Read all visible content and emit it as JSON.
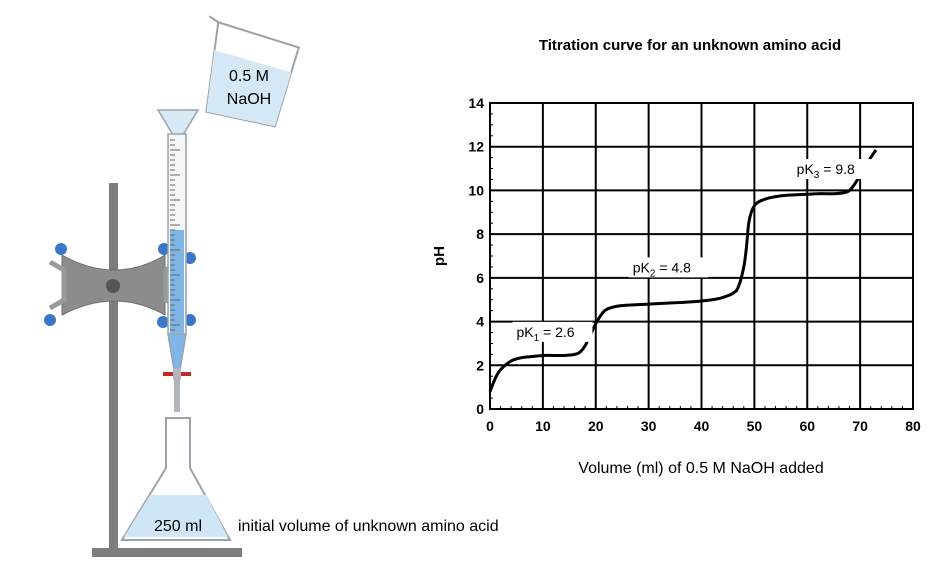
{
  "apparatus": {
    "beaker_label_line1": "0.5 M",
    "beaker_label_line2": "NaOH",
    "flask_label": "250 ml",
    "flask_caption": "initial volume of unknown amino acid"
  },
  "colors": {
    "liquid": "#cfe6f7",
    "burette_liquid": "#7fb6e6",
    "clamp": "#8c8c8c",
    "clamp_knobs": "#3b77c9",
    "stopcock": "#c62828",
    "stand": "#7d7d7d",
    "curve": "#000000",
    "grid": "#000000"
  },
  "chart_data": {
    "type": "line",
    "title": "Titration curve for an unknown amino acid",
    "xlabel": "Volume (ml) of 0.5 M NaOH added",
    "ylabel": "pH",
    "xlim": [
      0,
      80
    ],
    "ylim": [
      0,
      14
    ],
    "xticks": [
      "0",
      "10",
      "20",
      "30",
      "40",
      "50",
      "60",
      "70",
      "80"
    ],
    "yticks": [
      "0",
      "2",
      "4",
      "6",
      "8",
      "10",
      "12",
      "14"
    ],
    "grid": true,
    "series": [
      {
        "x": [
          0,
          1,
          2,
          4,
          6,
          8,
          10,
          12,
          14,
          16,
          17,
          18,
          19,
          20,
          21,
          22,
          24,
          26,
          30,
          34,
          38,
          42,
          44,
          46,
          47,
          48,
          48.5,
          49,
          50,
          52,
          55,
          58,
          62,
          65,
          67,
          68,
          69,
          70,
          71,
          72,
          73
        ],
        "y": [
          0.8,
          1.4,
          1.8,
          2.2,
          2.35,
          2.4,
          2.45,
          2.45,
          2.45,
          2.5,
          2.6,
          2.9,
          3.4,
          3.9,
          4.3,
          4.55,
          4.7,
          4.75,
          4.8,
          4.85,
          4.9,
          5.0,
          5.1,
          5.3,
          5.6,
          6.5,
          7.4,
          8.6,
          9.3,
          9.6,
          9.75,
          9.8,
          9.85,
          9.85,
          9.9,
          10.0,
          10.3,
          10.7,
          11.1,
          11.5,
          11.85
        ]
      }
    ],
    "annotations": [
      {
        "base": "pK",
        "sub": "1",
        "rest": " = 2.6",
        "x": 5,
        "y": 3.3
      },
      {
        "base": "pK",
        "sub": "2",
        "rest": " = 4.8",
        "x": 27,
        "y": 6.25
      },
      {
        "base": "pK",
        "sub": "3",
        "rest": " = 9.8",
        "x": 58,
        "y": 10.75
      }
    ]
  }
}
